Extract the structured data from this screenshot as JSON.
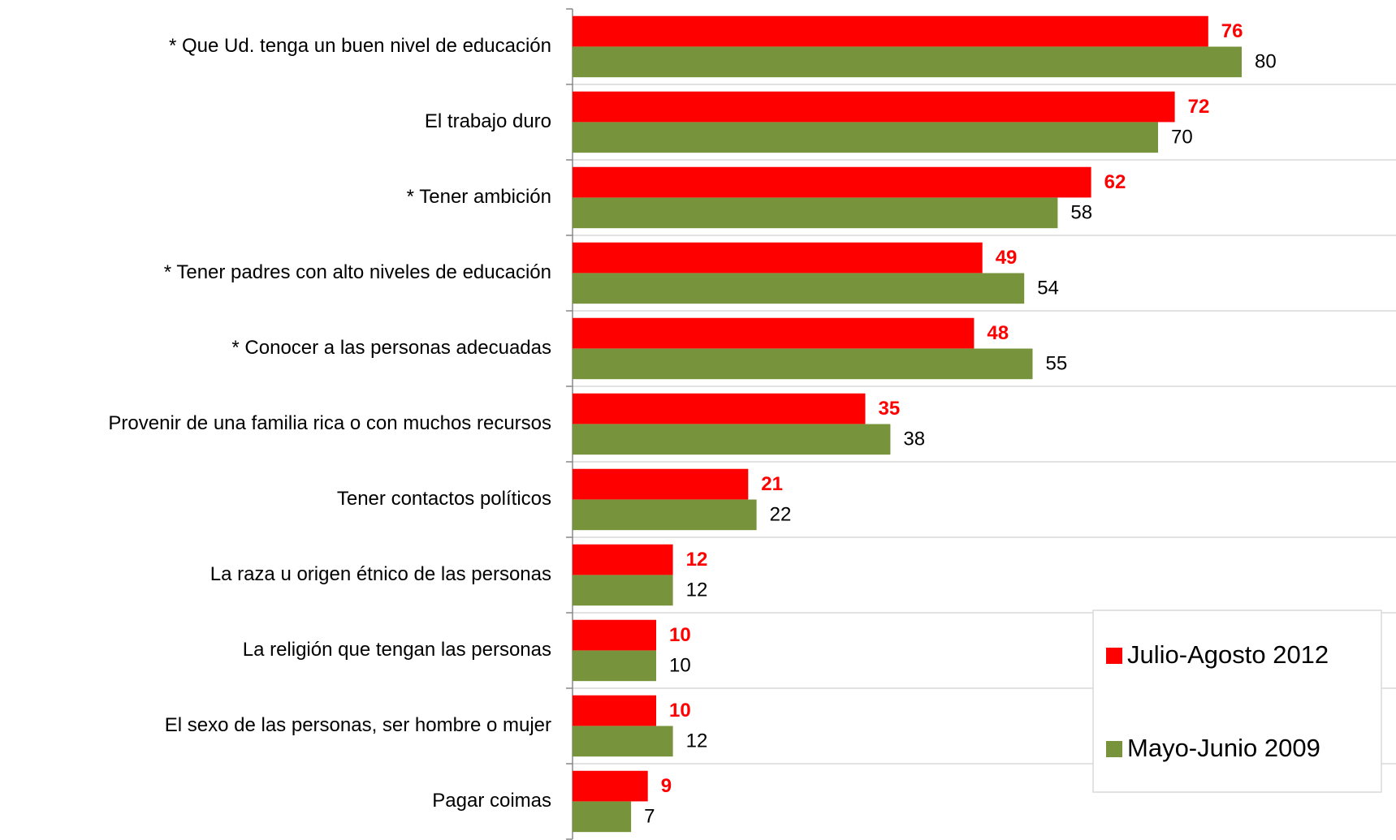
{
  "chart_data": {
    "type": "bar",
    "orientation": "horizontal",
    "categories": [
      "* Que Ud. tenga un buen nivel de educación",
      "El trabajo duro",
      "* Tener ambición",
      "* Tener padres con alto niveles de educación",
      "* Conocer a las personas adecuadas",
      "Provenir de una familia rica o con muchos recursos",
      "Tener contactos políticos",
      "La raza u origen étnico de las personas",
      "La religión que tengan las personas",
      "El sexo de las personas, ser hombre o mujer",
      "Pagar coimas"
    ],
    "series": [
      {
        "name": "Julio-Agosto 2012",
        "color": "#ff0000",
        "values": [
          76,
          72,
          62,
          49,
          48,
          35,
          21,
          12,
          10,
          10,
          9
        ]
      },
      {
        "name": "Mayo-Junio 2009",
        "color": "#77933c",
        "values": [
          80,
          70,
          58,
          54,
          55,
          38,
          22,
          12,
          10,
          12,
          7
        ]
      }
    ],
    "xlim": [
      0,
      100
    ],
    "legend": "lower right"
  }
}
